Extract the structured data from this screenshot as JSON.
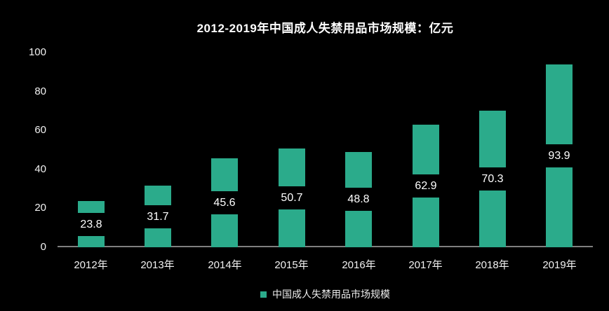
{
  "title": "2012-2019年中国成人失禁用品市场规模：亿元",
  "legend": {
    "label": "中国成人失禁用品市场规模",
    "marker_color": "#2BAB8B",
    "position": "bottom-center"
  },
  "colors": {
    "background": "#000000",
    "bar": "#2BAB8B",
    "text": "#FFFFFF",
    "axis_line": "#7F7F7F"
  },
  "chart_data": {
    "type": "bar",
    "title": "2012-2019年中国成人失禁用品市场规模：亿元",
    "categories": [
      "2012年",
      "2013年",
      "2014年",
      "2015年",
      "2016年",
      "2017年",
      "2018年",
      "2019年"
    ],
    "values": [
      23.8,
      31.7,
      45.6,
      50.7,
      48.8,
      62.9,
      70.3,
      93.9
    ],
    "value_labels": [
      "23.8",
      "31.7",
      "45.6",
      "50.7",
      "48.8",
      "62.9",
      "70.3",
      "93.9"
    ],
    "series_name": "中国成人失禁用品市场规模",
    "xlabel": "",
    "ylabel": "",
    "ylim": [
      0,
      100
    ],
    "yticks": [
      0,
      20,
      40,
      60,
      80,
      100
    ],
    "grid": false,
    "legend_position": "bottom",
    "value_label_style": "black band centered inside bar, white text"
  }
}
